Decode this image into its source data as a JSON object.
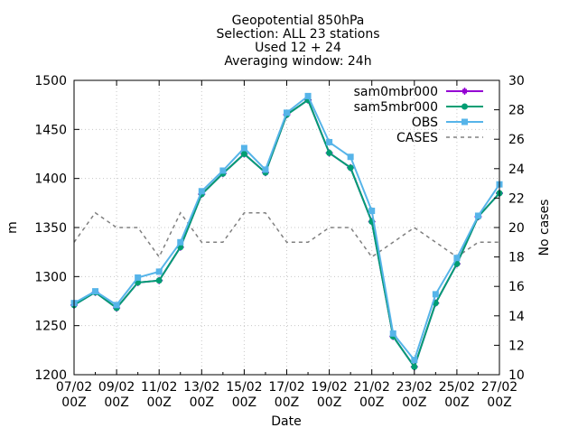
{
  "title_lines": [
    "Geopotential 850hPa",
    "Selection: ALL     23 stations",
    "Used 12 + 24",
    "Averaging window: 24h"
  ],
  "chart_data": {
    "type": "line",
    "xlabel": "Date",
    "ylabel": "m",
    "y2label": "No cases",
    "x_tick_labels": [
      "07/02\n00Z",
      "09/02\n00Z",
      "11/02\n00Z",
      "13/02\n00Z",
      "15/02\n00Z",
      "17/02\n00Z",
      "19/02\n00Z",
      "21/02\n00Z",
      "23/02\n00Z",
      "25/02\n00Z",
      "27/02\n00Z"
    ],
    "x": [
      "07/02",
      "08/02",
      "09/02",
      "10/02",
      "11/02",
      "12/02",
      "13/02",
      "14/02",
      "15/02",
      "16/02",
      "17/02",
      "18/02",
      "19/02",
      "20/02",
      "21/02",
      "22/02",
      "23/02",
      "24/02",
      "25/02",
      "26/02",
      "27/02"
    ],
    "ylim": [
      1200,
      1500
    ],
    "y_ticks": [
      1200,
      1250,
      1300,
      1350,
      1400,
      1450,
      1500
    ],
    "y2lim": [
      10,
      30
    ],
    "y2_ticks": [
      10,
      12,
      14,
      16,
      18,
      20,
      22,
      24,
      26,
      28,
      30
    ],
    "grid": true,
    "legend_position": "top-right",
    "series": [
      {
        "name": "sam0mbr000",
        "color": "#9400d3",
        "axis": "y",
        "marker": "plus",
        "values": [
          1271,
          1284,
          1268,
          1294,
          1296,
          1330,
          1384,
          1405,
          1425,
          1406,
          1465,
          1480,
          1426,
          1411,
          1356,
          1239,
          1208,
          1273,
          1313,
          1361,
          1385
        ]
      },
      {
        "name": "sam5mbr000",
        "color": "#009e73",
        "axis": "y",
        "marker": "filled-circle",
        "values": [
          1271,
          1284,
          1268,
          1294,
          1296,
          1330,
          1384,
          1405,
          1425,
          1406,
          1465,
          1480,
          1426,
          1411,
          1356,
          1239,
          1208,
          1273,
          1313,
          1361,
          1385
        ]
      },
      {
        "name": "OBS",
        "color": "#56b4e9",
        "axis": "y",
        "marker": "filled-square",
        "values": [
          1273,
          1285,
          1271,
          1299,
          1305,
          1335,
          1387,
          1408,
          1431,
          1409,
          1467,
          1484,
          1437,
          1422,
          1367,
          1242,
          1215,
          1282,
          1319,
          1362,
          1394
        ]
      },
      {
        "name": "CASES",
        "color": "#808080",
        "axis": "y2",
        "dashed": true,
        "values": [
          19,
          21,
          20,
          20,
          18,
          21,
          19,
          19,
          21,
          21,
          19,
          19,
          20,
          20,
          18,
          19,
          20,
          19,
          18,
          19,
          19
        ]
      }
    ]
  }
}
